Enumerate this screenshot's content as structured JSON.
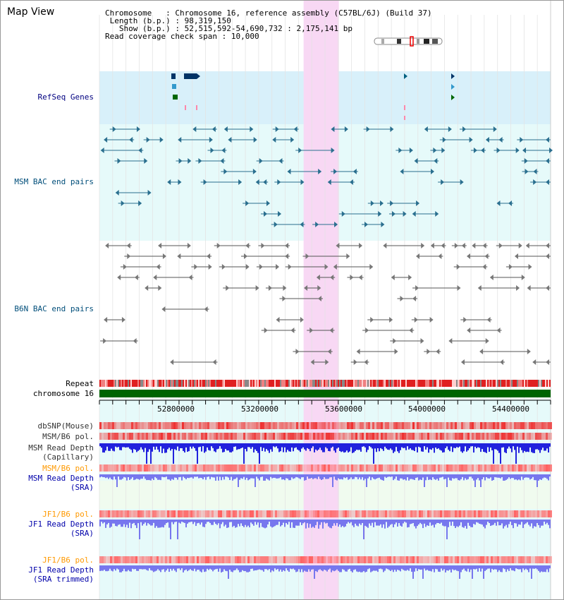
{
  "page": {
    "title": "Map View"
  },
  "info": {
    "chromosome_label": "Chromosome",
    "chromosome_value": "Chromosome 16, reference assembly (C57BL/6J) (Build 37)",
    "length_label": "Length (b.p.)",
    "length_value": "98,319,150",
    "show_label": "Show (b.p.)",
    "show_value": "52,515,592-54,690,732 : 2,175,141 bp",
    "coverage_label": "Read coverage check span",
    "coverage_value": "10,000"
  },
  "tracks": {
    "refseq": "RefSeq Genes",
    "msm_bac": "MSM BAC end pairs",
    "b6n_bac": "B6N BAC end pairs",
    "repeat": "Repeat",
    "chromosome": "chromosome 16",
    "dbsnp": "dbSNP(Mouse)",
    "msm_b6_pol_1": "MSM/B6 pol.",
    "msm_read_depth_cap_1": "MSM Read Depth",
    "msm_read_depth_cap_2": "(Capillary)",
    "msm_b6_pol_2": "MSM/B6 pol.",
    "msm_read_depth_sra_1": "MSM Read Depth",
    "msm_read_depth_sra_2": "(SRA)",
    "jf1_b6_pol_1": "JF1/B6 pol.",
    "jf1_read_depth_sra_1": "JF1 Read Depth",
    "jf1_read_depth_sra_2": "(SRA)",
    "jf1_b6_pol_2": "JF1/B6 pol.",
    "jf1_read_depth_trim_1": "JF1 Read Depth",
    "jf1_read_depth_trim_2": "(SRA trimmed)"
  },
  "axis": {
    "ticks": [
      "52800000",
      "53200000",
      "53600000",
      "54000000",
      "54400000"
    ]
  },
  "view": {
    "start_bp": 52515592,
    "end_bp": 54690732,
    "highlight_start_bp": 53500000,
    "highlight_end_bp": 53670000
  },
  "colors": {
    "refseq_bg": "#d8f0fa",
    "track_bg": "#e6fafa",
    "highlight": "#f8d8f4",
    "chromosome": "#006400",
    "msm_label": "#004e7a",
    "refseq_label": "#000080",
    "orange_label": "#ff9900",
    "blue_label": "#0000aa",
    "read_depth_cap": "#2222dd",
    "read_depth_sra": "#7777ee"
  }
}
